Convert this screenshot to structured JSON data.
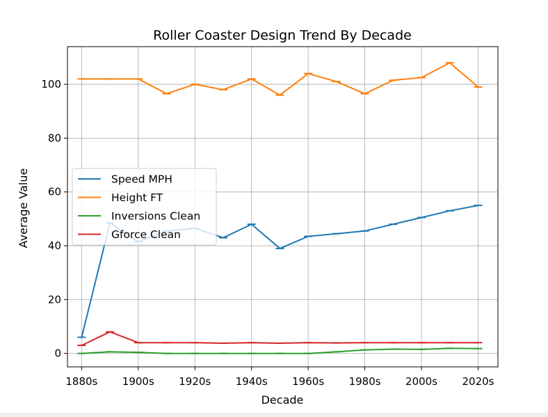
{
  "chart_data": {
    "type": "line",
    "title": "Roller Coaster Design Trend By Decade",
    "xlabel": "Decade",
    "ylabel": "Average Value",
    "x": [
      1880,
      1890,
      1900,
      1910,
      1920,
      1930,
      1940,
      1950,
      1960,
      1970,
      1980,
      1990,
      2000,
      2010,
      2020
    ],
    "xticks": [
      {
        "value": 1880,
        "label": "1880s"
      },
      {
        "value": 1900,
        "label": "1900s"
      },
      {
        "value": 1920,
        "label": "1920s"
      },
      {
        "value": 1940,
        "label": "1940s"
      },
      {
        "value": 1960,
        "label": "1960s"
      },
      {
        "value": 1980,
        "label": "1980s"
      },
      {
        "value": 2000,
        "label": "2000s"
      },
      {
        "value": 2020,
        "label": "2020s"
      }
    ],
    "yticks": [
      0,
      20,
      40,
      60,
      80,
      100
    ],
    "xlim": [
      1875,
      2027
    ],
    "ylim": [
      -5,
      114
    ],
    "grid": true,
    "legend_position": "center-left",
    "series": [
      {
        "name": "Speed MPH",
        "color": "#1f77b4",
        "values": [
          6,
          48.5,
          41.5,
          45.5,
          46.5,
          43,
          48,
          39,
          43.5,
          44.5,
          45.5,
          48,
          50.5,
          53,
          55
        ]
      },
      {
        "name": "Height FT",
        "color": "#ff7f0e",
        "values": [
          102,
          102,
          102,
          96.5,
          100,
          98,
          102,
          96,
          104,
          101,
          96.5,
          101.5,
          102.5,
          108,
          99
        ]
      },
      {
        "name": "Inversions Clean",
        "color": "#2ca02c",
        "values": [
          0,
          0.6,
          0.4,
          0,
          0,
          0,
          0,
          0,
          0,
          0.6,
          1.3,
          1.6,
          1.5,
          1.9,
          1.8
        ]
      },
      {
        "name": "Gforce Clean",
        "color": "#d62728",
        "values": [
          3,
          8,
          4,
          4,
          4,
          3.8,
          4,
          3.8,
          4,
          3.9,
          4,
          4,
          4,
          4,
          4
        ]
      }
    ]
  }
}
